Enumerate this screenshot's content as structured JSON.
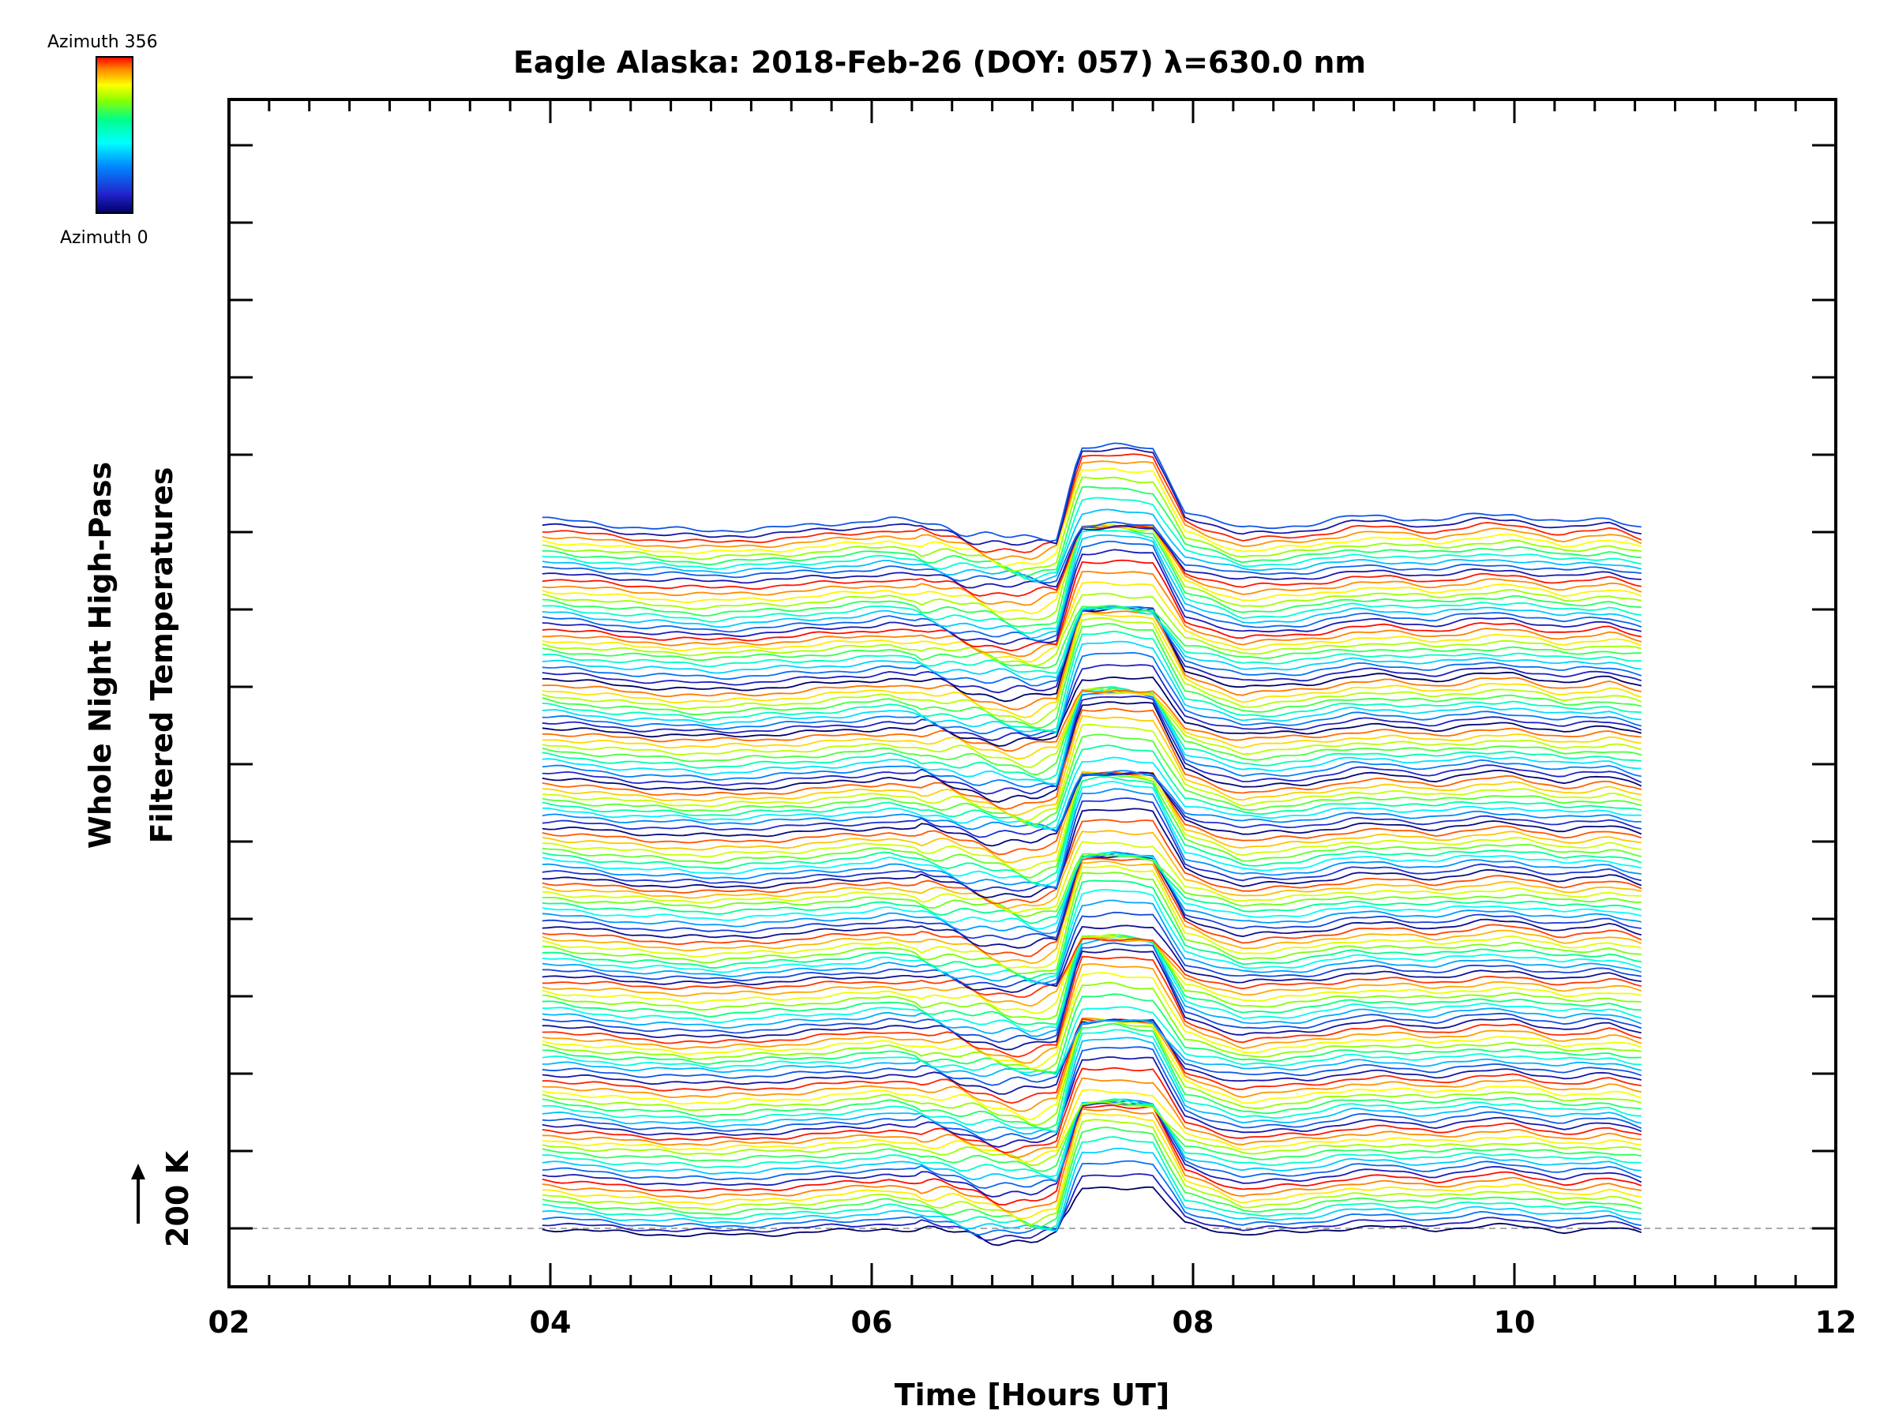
{
  "chart_data": {
    "type": "line",
    "title": "Eagle Alaska: 2018-Feb-26 (DOY: 057) λ=630.0 nm",
    "xlabel": "Time [Hours UT]",
    "ylabel_line1": "Whole Night High-Pass",
    "ylabel_line2": "Filtered Temperatures",
    "xlim": [
      2,
      12
    ],
    "x_ticks": [
      "02",
      "04",
      "06",
      "08",
      "10",
      "12"
    ],
    "y_scale_label": "200 K",
    "colorbar": {
      "top_label": "Azimuth 356",
      "bottom_label": "Azimuth 0",
      "colors": [
        "#ff0000",
        "#ff8800",
        "#ffff00",
        "#88ff00",
        "#00ff88",
        "#00ffff",
        "#0088ff",
        "#2222cc",
        "#000066"
      ]
    },
    "time_range": [
      3.95,
      10.8
    ],
    "trace_count": 130,
    "trace_spacing_K": 29,
    "baseline_color": "#aaaaaa",
    "series_shape": {
      "x": [
        3.95,
        4.5,
        5.0,
        5.5,
        6.0,
        6.1,
        6.5,
        6.8,
        7.0,
        7.15,
        7.3,
        7.5,
        7.75,
        7.95,
        8.3,
        8.7,
        9.0,
        9.2,
        9.5,
        9.8,
        10.0,
        10.3,
        10.6,
        10.8
      ],
      "y_K": [
        0,
        -20,
        -30,
        -20,
        -5,
        0,
        -20,
        -45,
        -55,
        -40,
        170,
        175,
        165,
        20,
        -25,
        -15,
        5,
        5,
        -5,
        10,
        10,
        -10,
        0,
        -20
      ]
    }
  }
}
